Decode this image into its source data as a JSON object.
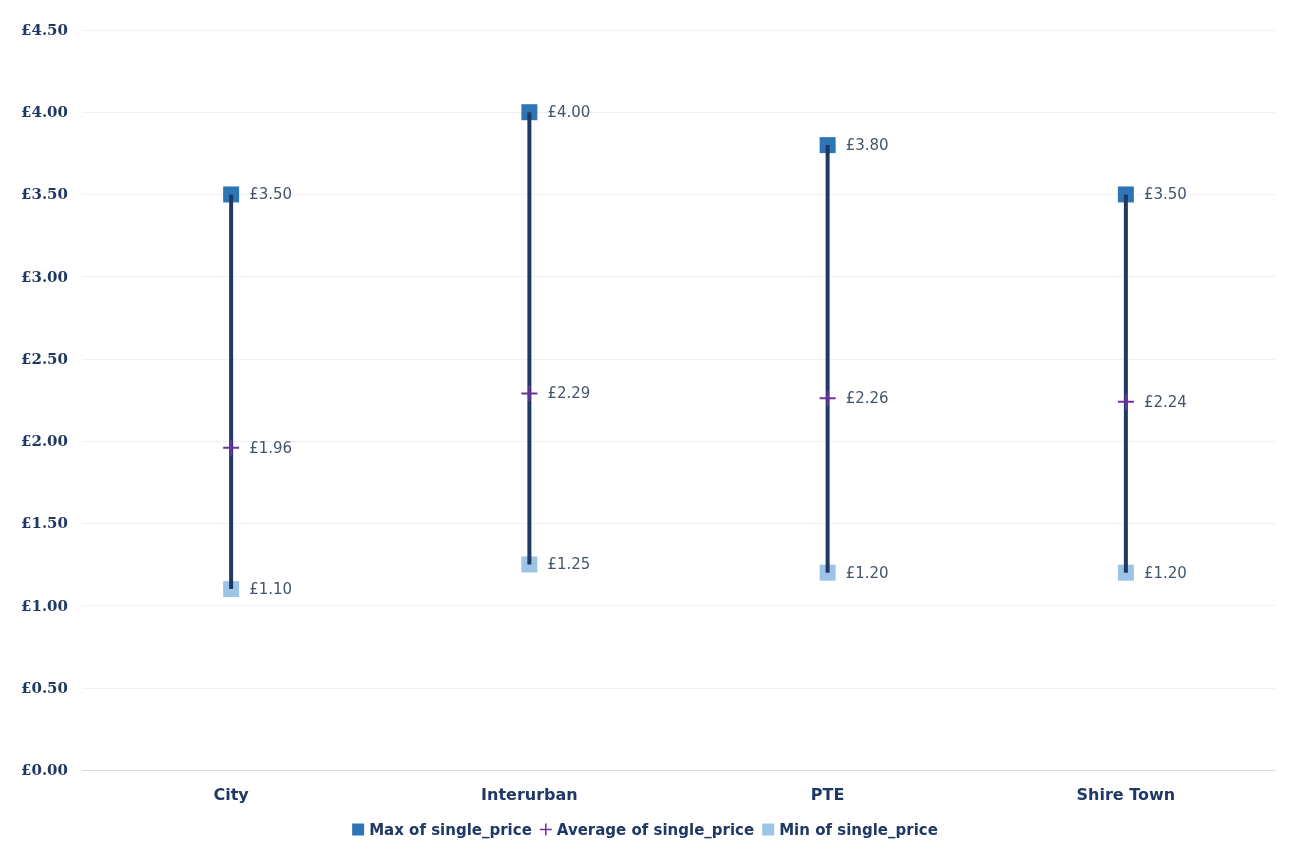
{
  "chart_data": {
    "type": "scatter",
    "categories": [
      "City",
      "Interurban",
      "PTE",
      "Shire Town"
    ],
    "series": [
      {
        "type": "bar",
        "color": "#203864",
        "base": [
          1.1,
          1.25,
          1.2,
          1.2
        ],
        "values": [
          2.4,
          2.75,
          2.6,
          2.3
        ]
      },
      {
        "name": "Max of single_price",
        "color": "#2e75b6",
        "marker": "square",
        "values": [
          3.5,
          4.0,
          3.8,
          3.5
        ],
        "value_labels": [
          "£3.50",
          "£4.00",
          "£3.80",
          "£3.50"
        ]
      },
      {
        "name": "Average of single_price",
        "color": "#7030a0",
        "marker": "cross",
        "values": [
          1.96,
          2.29,
          2.26,
          2.24
        ],
        "value_labels": [
          "£1.96",
          "£2.29",
          "£2.26",
          "£2.24"
        ]
      },
      {
        "name": "Min of single_price",
        "color": "#9dc3e6",
        "marker": "square",
        "values": [
          1.1,
          1.25,
          1.2,
          1.2
        ],
        "value_labels": [
          "£1.10",
          "£1.25",
          "£1.20",
          "£1.20"
        ]
      }
    ],
    "ylim": [
      0,
      4.5
    ],
    "yticks": [
      {
        "value": 0,
        "label": "£0.00"
      },
      {
        "value": 0.5,
        "label": "£0.50"
      },
      {
        "value": 1,
        "label": "£1.00"
      },
      {
        "value": 1.5,
        "label": "£1.50"
      },
      {
        "value": 2,
        "label": "£2.00"
      },
      {
        "value": 2.5,
        "label": "£2.50"
      },
      {
        "value": 3,
        "label": "£3.00"
      },
      {
        "value": 3.5,
        "label": "£3.50"
      },
      {
        "value": 4,
        "label": "£4.00"
      },
      {
        "value": 4.5,
        "label": "£4.50"
      }
    ],
    "grid": "y",
    "legend": "bottom"
  }
}
